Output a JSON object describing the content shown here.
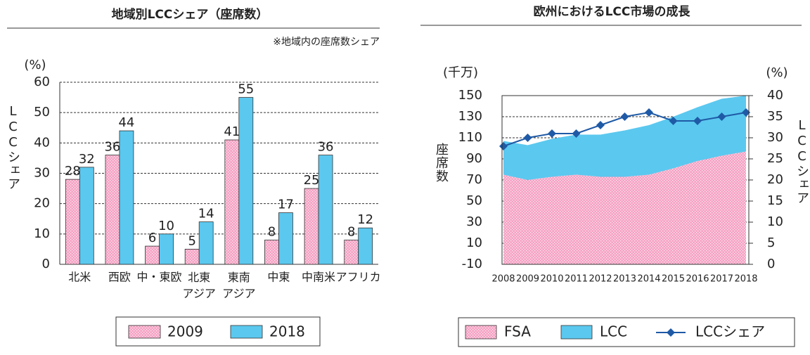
{
  "chart_data": [
    {
      "type": "bar",
      "title": "地域別LCCシェア（座席数）",
      "annotation": "※地域内の座席数シェア",
      "y_unit": "(%)",
      "y_label": "LCCシェア",
      "categories": [
        "北米",
        "西欧",
        "中・東欧",
        "北東アジア",
        "東南アジア",
        "中東",
        "中南米",
        "アフリカ"
      ],
      "series": [
        {
          "name": "2009",
          "color": "#f5a3c4",
          "values": [
            28,
            36,
            6,
            5,
            41,
            8,
            25,
            8
          ]
        },
        {
          "name": "2018",
          "color": "#5bc8ef",
          "values": [
            32,
            44,
            10,
            14,
            55,
            17,
            36,
            12
          ]
        }
      ],
      "ylim": [
        0,
        60
      ],
      "yticks": [
        0,
        10,
        20,
        30,
        40,
        50,
        60
      ],
      "grid": true,
      "legend": "bottom"
    },
    {
      "type": "area_line",
      "title": "欧州におけるLCC市場の成長",
      "y_unit": "(千万)",
      "y2_unit": "(%)",
      "y_label": "座席数",
      "y2_label": "LCCシェア",
      "x": [
        "2008",
        "2009",
        "2010",
        "2011",
        "2012",
        "2013",
        "2014",
        "2015",
        "2016",
        "2017",
        "2018"
      ],
      "series": [
        {
          "name": "FSA",
          "kind": "area",
          "color": "#f5a3c4",
          "values": [
            75,
            70,
            73,
            75,
            73,
            73,
            75,
            81,
            88,
            93,
            97
          ]
        },
        {
          "name": "LCC",
          "kind": "area",
          "color": "#5bc8ef",
          "values": [
            32,
            33,
            36,
            38,
            40,
            44,
            47,
            49,
            51,
            54,
            53
          ]
        },
        {
          "name": "LCCシェア",
          "kind": "line",
          "axis": "y2",
          "color": "#1f5aa6",
          "values": [
            28,
            30,
            31,
            31,
            33,
            35,
            36,
            34,
            34,
            35,
            36
          ]
        }
      ],
      "ylim": [
        -10,
        150
      ],
      "yticks": [
        -10,
        10,
        30,
        50,
        70,
        90,
        110,
        130,
        150
      ],
      "y2lim": [
        0,
        40
      ],
      "y2ticks": [
        0,
        5,
        10,
        15,
        20,
        25,
        30,
        35,
        40
      ],
      "grid": true,
      "legend": "bottom"
    }
  ]
}
